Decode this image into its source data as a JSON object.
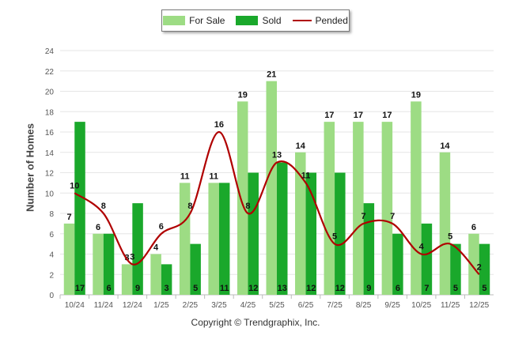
{
  "chart_data": {
    "type": "bar",
    "categories": [
      "10/24",
      "11/24",
      "12/24",
      "1/25",
      "2/25",
      "3/25",
      "4/25",
      "5/25",
      "6/25",
      "7/25",
      "8/25",
      "9/25",
      "10/25",
      "11/25",
      "12/25"
    ],
    "series": [
      {
        "name": "For Sale",
        "type": "bar",
        "color": "#9ddc84",
        "values": [
          7,
          6,
          3,
          4,
          11,
          11,
          19,
          21,
          14,
          17,
          17,
          17,
          19,
          14,
          6
        ]
      },
      {
        "name": "Sold",
        "type": "bar",
        "color": "#1aa82b",
        "values": [
          17,
          6,
          9,
          3,
          5,
          11,
          12,
          13,
          12,
          12,
          9,
          6,
          7,
          5,
          5
        ]
      },
      {
        "name": "Pended",
        "type": "line",
        "color": "#b00000",
        "values": [
          10,
          8,
          3,
          6,
          8,
          16,
          8,
          13,
          11,
          5,
          7,
          7,
          4,
          5,
          2
        ]
      }
    ],
    "xlabel": "",
    "ylabel": "Number of Homes",
    "ylim": [
      0,
      24
    ],
    "yticks": [
      0,
      2,
      4,
      6,
      8,
      10,
      12,
      14,
      16,
      18,
      20,
      22,
      24
    ],
    "legend_position": "top-center"
  },
  "footer": {
    "copyright": "Copyright © Trendgraphix, Inc."
  }
}
